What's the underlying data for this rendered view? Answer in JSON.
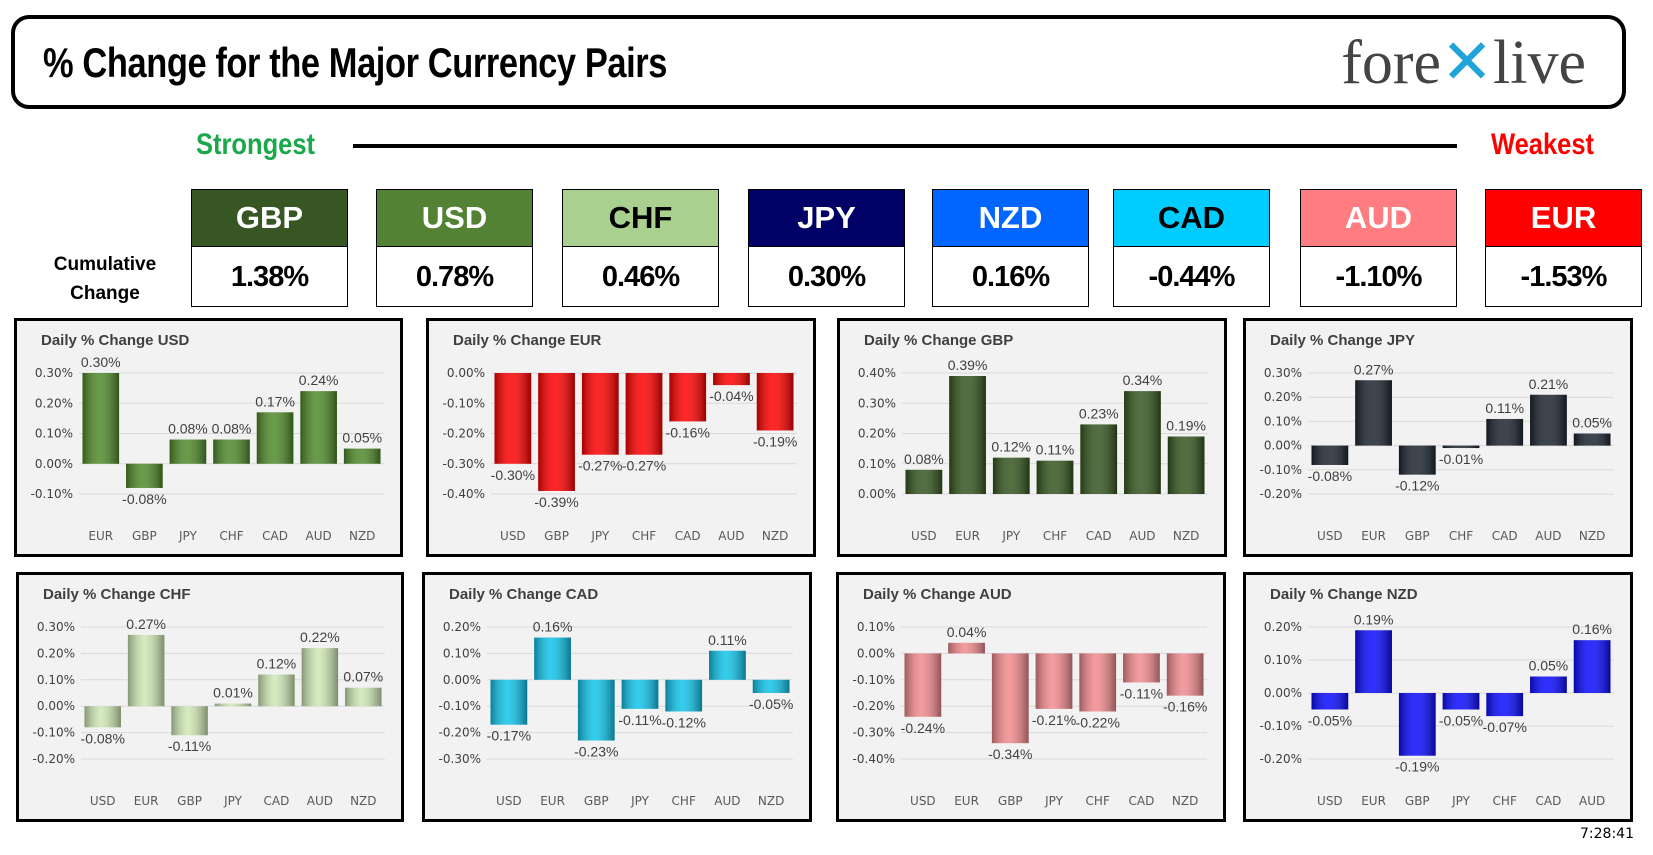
{
  "header": {
    "title": "% Change for the Major Currency Pairs",
    "logo": "forexlive"
  },
  "scale": {
    "strongest": "Strongest",
    "weakest": "Weakest"
  },
  "cumulative_label": "Cumulative Change",
  "cumulative": [
    {
      "currency": "GBP",
      "value": "1.38%",
      "color": "#375623",
      "text_color": "#ffffff"
    },
    {
      "currency": "USD",
      "value": "0.78%",
      "color": "#548235",
      "text_color": "#ffffff"
    },
    {
      "currency": "CHF",
      "value": "0.46%",
      "color": "#a9d08e",
      "text_color": "#000000"
    },
    {
      "currency": "JPY",
      "value": "0.30%",
      "color": "#000066",
      "text_color": "#ffffff"
    },
    {
      "currency": "NZD",
      "value": "0.16%",
      "color": "#0066ff",
      "text_color": "#ffffff"
    },
    {
      "currency": "CAD",
      "value": "-0.44%",
      "color": "#00ccff",
      "text_color": "#000000"
    },
    {
      "currency": "AUD",
      "value": "-1.10%",
      "color": "#ff7c80",
      "text_color": "#ffffff"
    },
    {
      "currency": "EUR",
      "value": "-1.53%",
      "color": "#ff0000",
      "text_color": "#ffffff"
    }
  ],
  "chart_data": [
    {
      "type": "bar",
      "title": "Daily % Change USD",
      "color": "#4f8a2a",
      "categories": [
        "EUR",
        "GBP",
        "JPY",
        "CHF",
        "CAD",
        "AUD",
        "NZD"
      ],
      "values": [
        0.3,
        -0.08,
        0.08,
        0.08,
        0.17,
        0.24,
        0.05
      ],
      "ylim": [
        -0.1,
        0.3
      ],
      "yticks": [
        "0.30%",
        "0.20%",
        "0.10%",
        "0.00%",
        "-0.10%"
      ],
      "grid": true
    },
    {
      "type": "bar",
      "title": "Daily % Change EUR",
      "color": "#ff0000",
      "categories": [
        "USD",
        "GBP",
        "JPY",
        "CHF",
        "CAD",
        "AUD",
        "NZD"
      ],
      "values": [
        -0.3,
        -0.39,
        -0.27,
        -0.27,
        -0.16,
        -0.04,
        -0.19
      ],
      "ylim": [
        -0.4,
        0.0
      ],
      "yticks": [
        "0.00%",
        "-0.10%",
        "-0.20%",
        "-0.30%",
        "-0.40%"
      ],
      "grid": true
    },
    {
      "type": "bar",
      "title": "Daily % Change GBP",
      "color": "#34561f",
      "categories": [
        "USD",
        "EUR",
        "JPY",
        "CHF",
        "CAD",
        "AUD",
        "NZD"
      ],
      "values": [
        0.08,
        0.39,
        0.12,
        0.11,
        0.23,
        0.34,
        0.19
      ],
      "ylim": [
        0.0,
        0.4
      ],
      "yticks": [
        "0.40%",
        "0.30%",
        "0.20%",
        "0.10%",
        "0.00%"
      ],
      "grid": true
    },
    {
      "type": "bar",
      "title": "Daily % Change JPY",
      "color": "#1c2430",
      "categories": [
        "USD",
        "EUR",
        "GBP",
        "CHF",
        "CAD",
        "AUD",
        "NZD"
      ],
      "values": [
        -0.08,
        0.27,
        -0.12,
        -0.01,
        0.11,
        0.21,
        0.05
      ],
      "ylim": [
        -0.2,
        0.3
      ],
      "yticks": [
        "0.30%",
        "0.20%",
        "0.10%",
        "0.00%",
        "-0.10%",
        "-0.20%"
      ],
      "grid": true
    },
    {
      "type": "bar",
      "title": "Daily % Change CHF",
      "color": "#cfe8b5",
      "categories": [
        "USD",
        "EUR",
        "GBP",
        "JPY",
        "CAD",
        "AUD",
        "NZD"
      ],
      "values": [
        -0.08,
        0.27,
        -0.11,
        0.01,
        0.12,
        0.22,
        0.07
      ],
      "ylim": [
        -0.2,
        0.3
      ],
      "yticks": [
        "0.30%",
        "0.20%",
        "0.10%",
        "0.00%",
        "-0.10%",
        "-0.20%"
      ],
      "grid": true
    },
    {
      "type": "bar",
      "title": "Daily % Change CAD",
      "color": "#10c4ea",
      "categories": [
        "USD",
        "EUR",
        "GBP",
        "JPY",
        "CHF",
        "AUD",
        "NZD"
      ],
      "values": [
        -0.17,
        0.16,
        -0.23,
        -0.11,
        -0.12,
        0.11,
        -0.05
      ],
      "ylim": [
        -0.3,
        0.2
      ],
      "yticks": [
        "0.20%",
        "0.10%",
        "0.00%",
        "-0.10%",
        "-0.20%",
        "-0.30%"
      ],
      "grid": true
    },
    {
      "type": "bar",
      "title": "Daily % Change AUD",
      "color": "#f28a8e",
      "categories": [
        "USD",
        "EUR",
        "GBP",
        "JPY",
        "CHF",
        "CAD",
        "NZD"
      ],
      "values": [
        -0.24,
        0.04,
        -0.34,
        -0.21,
        -0.22,
        -0.11,
        -0.16
      ],
      "ylim": [
        -0.4,
        0.1
      ],
      "yticks": [
        "0.10%",
        "0.00%",
        "-0.10%",
        "-0.20%",
        "-0.30%",
        "-0.40%"
      ],
      "grid": true
    },
    {
      "type": "bar",
      "title": "Daily % Change NZD",
      "color": "#0a0aff",
      "categories": [
        "USD",
        "EUR",
        "GBP",
        "JPY",
        "CHF",
        "CAD",
        "AUD"
      ],
      "values": [
        -0.05,
        0.19,
        -0.19,
        -0.05,
        -0.07,
        0.05,
        0.16
      ],
      "ylim": [
        -0.2,
        0.2
      ],
      "yticks": [
        "0.20%",
        "0.10%",
        "0.00%",
        "-0.10%",
        "-0.20%"
      ],
      "grid": true
    }
  ],
  "time": "7:28:41"
}
